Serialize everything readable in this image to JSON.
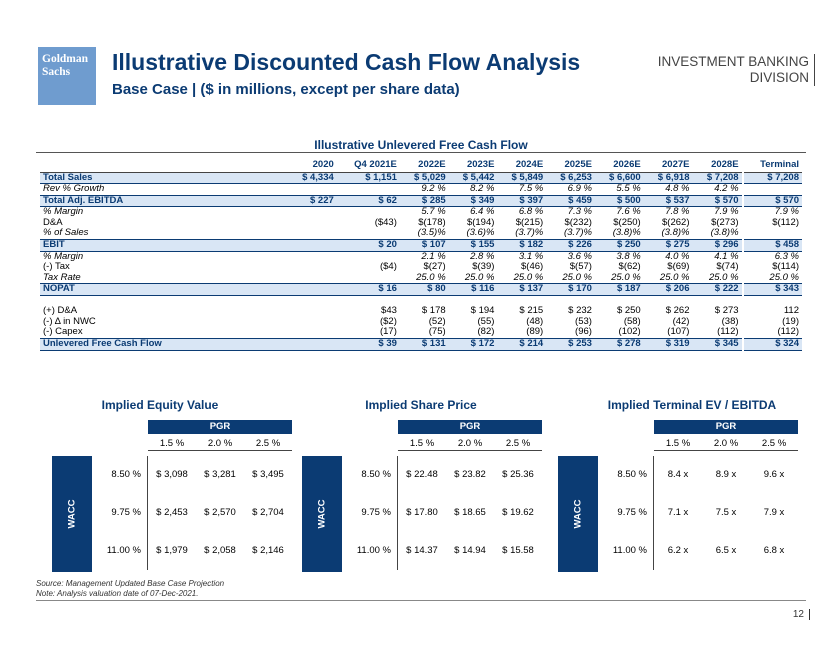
{
  "logo": {
    "line1": "Goldman",
    "line2": "Sachs"
  },
  "header": {
    "title": "Illustrative Discounted Cash Flow Analysis",
    "subtitle": "Base Case | ($ in millions, except per share data)",
    "division_line1": "INVESTMENT BANKING",
    "division_line2": "DIVISION"
  },
  "fcf": {
    "title": "Illustrative Unlevered Free Cash Flow",
    "columns": [
      "2020",
      "Q4 2021E",
      "2022E",
      "2023E",
      "2024E",
      "2025E",
      "2026E",
      "2027E",
      "2028E",
      "Terminal"
    ],
    "rows": [
      {
        "label": "Total Sales",
        "style": "hl",
        "values": [
          "$ 4,334",
          "$ 1,151",
          "$ 5,029",
          "$ 5,442",
          "$ 5,849",
          "$ 6,253",
          "$ 6,600",
          "$ 6,918",
          "$ 7,208",
          "$ 7,208"
        ]
      },
      {
        "label": "Rev % Growth",
        "style": "it",
        "values": [
          "",
          "",
          "9.2 %",
          "8.2 %",
          "7.5 %",
          "6.9 %",
          "5.5 %",
          "4.8 %",
          "4.2 %",
          ""
        ]
      },
      {
        "label": "Total Adj. EBITDA",
        "style": "hl",
        "values": [
          "$ 227",
          "$ 62",
          "$ 285",
          "$ 349",
          "$ 397",
          "$ 459",
          "$ 500",
          "$ 537",
          "$ 570",
          "$ 570"
        ]
      },
      {
        "label": "% Margin",
        "style": "it",
        "values": [
          "",
          "",
          "5.7 %",
          "6.4 %",
          "6.8 %",
          "7.3 %",
          "7.6 %",
          "7.8 %",
          "7.9 %",
          "7.9 %"
        ]
      },
      {
        "label": "D&A",
        "style": "",
        "values": [
          "",
          "($43)",
          "$(178)",
          "$(194)",
          "$(215)",
          "$(232)",
          "$(250)",
          "$(262)",
          "$(273)",
          "$(112)"
        ]
      },
      {
        "label": "% of Sales",
        "style": "it",
        "values": [
          "",
          "",
          "(3.5)%",
          "(3.6)%",
          "(3.7)%",
          "(3.7)%",
          "(3.8)%",
          "(3.8)%",
          "(3.8)%",
          ""
        ]
      },
      {
        "label": "EBIT",
        "style": "hl",
        "values": [
          "",
          "$ 20",
          "$ 107",
          "$ 155",
          "$ 182",
          "$ 226",
          "$ 250",
          "$ 275",
          "$ 296",
          "$ 458"
        ]
      },
      {
        "label": "% Margin",
        "style": "it",
        "values": [
          "",
          "",
          "2.1 %",
          "2.8 %",
          "3.1 %",
          "3.6 %",
          "3.8 %",
          "4.0 %",
          "4.1 %",
          "6.3 %"
        ]
      },
      {
        "label": "(-) Tax",
        "style": "",
        "values": [
          "",
          "($4)",
          "$(27)",
          "$(39)",
          "$(46)",
          "$(57)",
          "$(62)",
          "$(69)",
          "$(74)",
          "$(114)"
        ]
      },
      {
        "label": "Tax Rate",
        "style": "it",
        "values": [
          "",
          "",
          "25.0 %",
          "25.0 %",
          "25.0 %",
          "25.0 %",
          "25.0 %",
          "25.0 %",
          "25.0 %",
          "25.0 %"
        ]
      },
      {
        "label": "NOPAT",
        "style": "hl",
        "values": [
          "",
          "$ 16",
          "$ 80",
          "$ 116",
          "$ 137",
          "$ 170",
          "$ 187",
          "$ 206",
          "$ 222",
          "$ 343"
        ]
      },
      {
        "label": "",
        "style": "",
        "values": [
          "",
          "",
          "",
          "",
          "",
          "",
          "",
          "",
          "",
          ""
        ]
      },
      {
        "label": "(+) D&A",
        "style": "",
        "values": [
          "",
          "$43",
          "$ 178",
          "$ 194",
          "$ 215",
          "$ 232",
          "$ 250",
          "$ 262",
          "$ 273",
          "112"
        ]
      },
      {
        "label": "(-) Δ in NWC",
        "style": "",
        "values": [
          "",
          "($2)",
          "(52)",
          "(55)",
          "(48)",
          "(53)",
          "(58)",
          "(42)",
          "(38)",
          "(19)"
        ]
      },
      {
        "label": "(-) Capex",
        "style": "",
        "values": [
          "",
          "(17)",
          "(75)",
          "(82)",
          "(89)",
          "(96)",
          "(102)",
          "(107)",
          "(112)",
          "(112)"
        ]
      },
      {
        "label": "Unlevered Free Cash Flow",
        "style": "hl",
        "values": [
          "",
          "$ 39",
          "$ 131",
          "$ 172",
          "$ 214",
          "$ 253",
          "$ 278",
          "$ 319",
          "$ 345",
          "$ 324"
        ]
      }
    ]
  },
  "sensitivities": [
    {
      "title": "Implied Equity Value",
      "pgr_label": "PGR",
      "wacc_label": "WACC",
      "pgr": [
        "1.5 %",
        "2.0 %",
        "2.5 %"
      ],
      "rows": [
        {
          "rate": "8.50 %",
          "values": [
            "$ 3,098",
            "$ 3,281",
            "$ 3,495"
          ]
        },
        {
          "rate": "9.75 %",
          "values": [
            "$ 2,453",
            "$ 2,570",
            "$ 2,704"
          ]
        },
        {
          "rate": "11.00 %",
          "values": [
            "$ 1,979",
            "$ 2,058",
            "$ 2,146"
          ]
        }
      ]
    },
    {
      "title": "Implied Share Price",
      "pgr_label": "PGR",
      "wacc_label": "WACC",
      "pgr": [
        "1.5 %",
        "2.0 %",
        "2.5 %"
      ],
      "rows": [
        {
          "rate": "8.50 %",
          "values": [
            "$ 22.48",
            "$ 23.82",
            "$ 25.36"
          ]
        },
        {
          "rate": "9.75 %",
          "values": [
            "$ 17.80",
            "$ 18.65",
            "$ 19.62"
          ]
        },
        {
          "rate": "11.00 %",
          "values": [
            "$ 14.37",
            "$ 14.94",
            "$ 15.58"
          ]
        }
      ]
    },
    {
      "title": "Implied Terminal EV / EBITDA",
      "pgr_label": "PGR",
      "wacc_label": "WACC",
      "pgr": [
        "1.5 %",
        "2.0 %",
        "2.5 %"
      ],
      "rows": [
        {
          "rate": "8.50 %",
          "values": [
            "8.4 x",
            "8.9 x",
            "9.6 x"
          ]
        },
        {
          "rate": "9.75 %",
          "values": [
            "7.1 x",
            "7.5 x",
            "7.9 x"
          ]
        },
        {
          "rate": "11.00 %",
          "values": [
            "6.2 x",
            "6.5 x",
            "6.8 x"
          ]
        }
      ]
    }
  ],
  "footnote": {
    "line1": "Source: Management Updated Base Case Projection",
    "line2": "Note: Analysis valuation date of 07-Dec-2021."
  },
  "page_number": "12"
}
